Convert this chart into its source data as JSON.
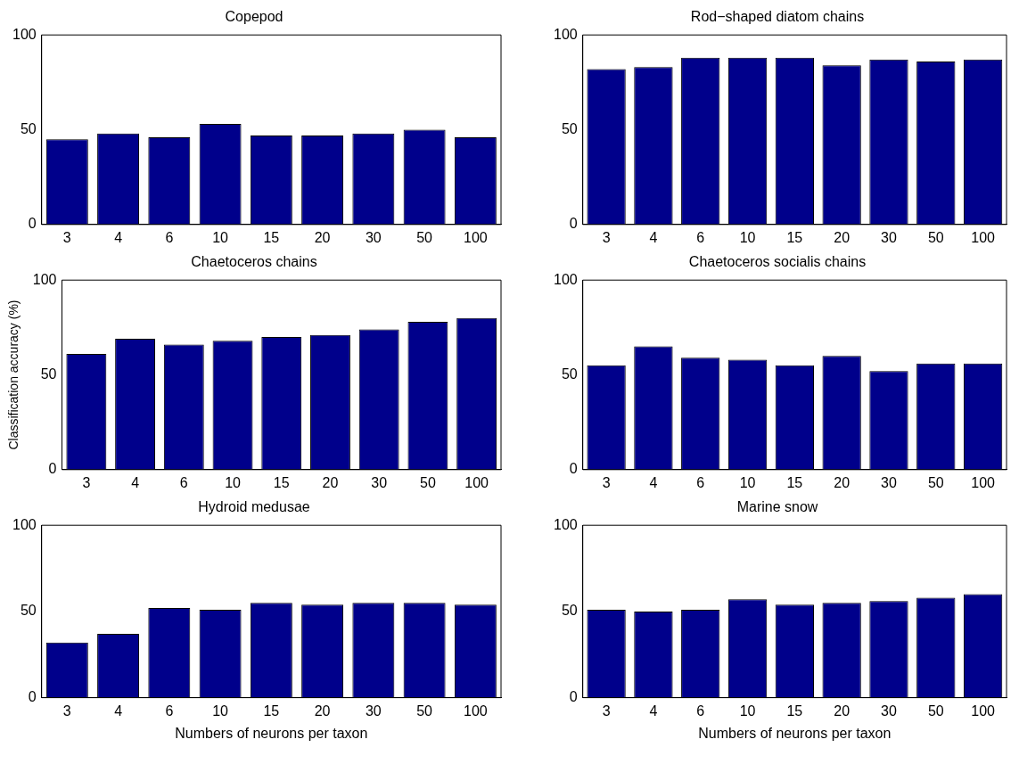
{
  "chart_data": [
    {
      "type": "bar",
      "title": "Copepod",
      "categories": [
        "3",
        "4",
        "6",
        "10",
        "15",
        "20",
        "30",
        "50",
        "100"
      ],
      "values": [
        45,
        48,
        46,
        53,
        47,
        47,
        48,
        50,
        46
      ],
      "color": "#00008b",
      "ylim": [
        0,
        100
      ],
      "yticks": [
        0,
        50,
        100
      ],
      "grid": false
    },
    {
      "type": "bar",
      "title": "Rod−shaped diatom chains",
      "categories": [
        "3",
        "4",
        "6",
        "10",
        "15",
        "20",
        "30",
        "50",
        "100"
      ],
      "values": [
        82,
        83,
        88,
        88,
        88,
        84,
        87,
        86,
        87
      ],
      "color": "#00008b",
      "ylim": [
        0,
        100
      ],
      "yticks": [
        0,
        50,
        100
      ],
      "grid": false
    },
    {
      "type": "bar",
      "title": "Chaetoceros chains",
      "ylabel": "Classification accuracy (%)",
      "categories": [
        "3",
        "4",
        "6",
        "10",
        "15",
        "20",
        "30",
        "50",
        "100"
      ],
      "values": [
        61,
        69,
        66,
        68,
        70,
        71,
        74,
        78,
        80
      ],
      "color": "#00008b",
      "ylim": [
        0,
        100
      ],
      "yticks": [
        0,
        50,
        100
      ],
      "grid": false
    },
    {
      "type": "bar",
      "title": "Chaetoceros socialis chains",
      "categories": [
        "3",
        "4",
        "6",
        "10",
        "15",
        "20",
        "30",
        "50",
        "100"
      ],
      "values": [
        55,
        65,
        59,
        58,
        55,
        60,
        52,
        56,
        56
      ],
      "color": "#00008b",
      "ylim": [
        0,
        100
      ],
      "yticks": [
        0,
        50,
        100
      ],
      "grid": false
    },
    {
      "type": "bar",
      "title": "Hydroid medusae",
      "xlabel": "Numbers of neurons per taxon",
      "categories": [
        "3",
        "4",
        "6",
        "10",
        "15",
        "20",
        "30",
        "50",
        "100"
      ],
      "values": [
        32,
        37,
        52,
        51,
        55,
        54,
        55,
        55,
        54
      ],
      "color": "#00008b",
      "ylim": [
        0,
        100
      ],
      "yticks": [
        0,
        50,
        100
      ],
      "grid": false
    },
    {
      "type": "bar",
      "title": "Marine snow",
      "xlabel": "Numbers of neurons per taxon",
      "categories": [
        "3",
        "4",
        "6",
        "10",
        "15",
        "20",
        "30",
        "50",
        "100"
      ],
      "values": [
        51,
        50,
        51,
        57,
        54,
        55,
        56,
        58,
        60
      ],
      "color": "#00008b",
      "ylim": [
        0,
        100
      ],
      "yticks": [
        0,
        50,
        100
      ],
      "grid": false
    }
  ]
}
